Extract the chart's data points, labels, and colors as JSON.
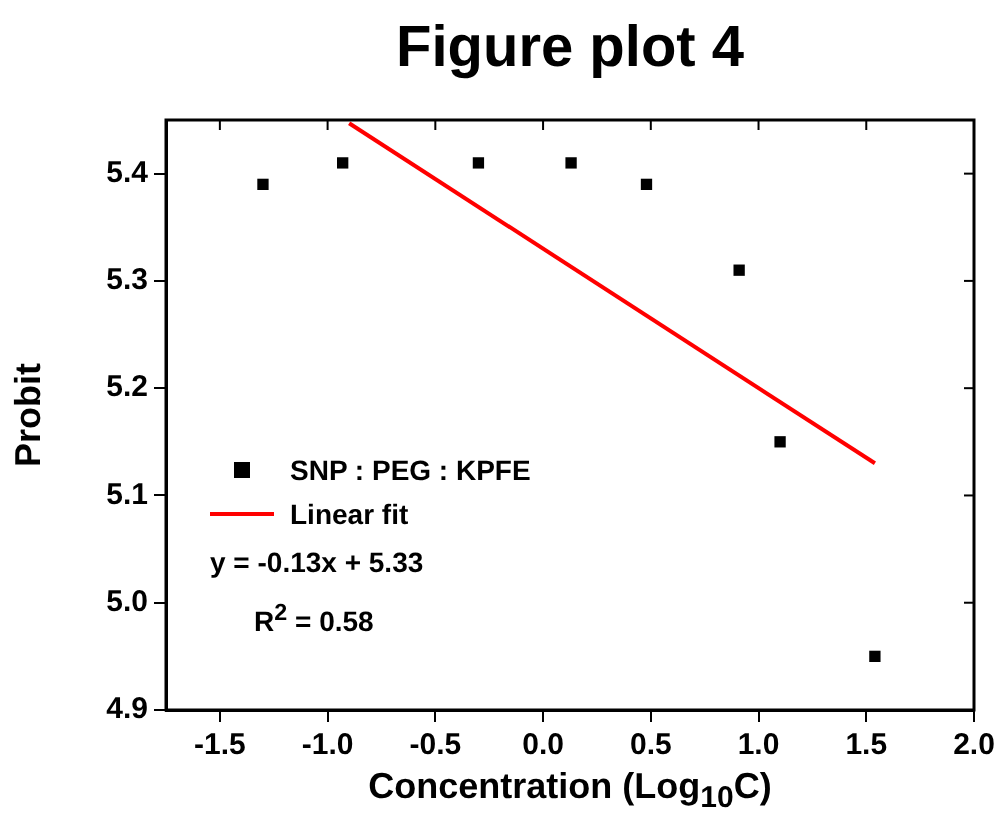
{
  "chart_data": {
    "type": "scatter",
    "title": "Figure plot 4",
    "xlabel": "Concentration (Log$_{10}$C)",
    "ylabel": "Probit",
    "xlim": [
      -1.75,
      2.0
    ],
    "xticks": [
      {
        "value": -1.5,
        "label": "-1.5"
      },
      {
        "value": -1.0,
        "label": "-1.0"
      },
      {
        "value": -0.5,
        "label": "-0.5"
      },
      {
        "value": 0,
        "label": "0.0"
      },
      {
        "value": 0.5,
        "label": "0.5"
      },
      {
        "value": 1.0,
        "label": "1.0"
      },
      {
        "value": 1.5,
        "label": "1.5"
      },
      {
        "value": 2.0,
        "label": "2.0"
      }
    ],
    "ylim": [
      4.9,
      5.45
    ],
    "yticks": [
      {
        "value": 4.9,
        "label": "4.9"
      },
      {
        "value": 5.0,
        "label": "5.0"
      },
      {
        "value": 5.1,
        "label": "5.1"
      },
      {
        "value": 5.2,
        "label": "5.2"
      },
      {
        "value": 5.3,
        "label": "5.3"
      },
      {
        "value": 5.4,
        "label": "5.4"
      }
    ],
    "series": [
      {
        "name": "SNP : PEG : KPFE",
        "color": "#000000",
        "marker": "square",
        "x": [
          -1.3,
          -0.93,
          -0.3,
          0.13,
          0.48,
          0.91,
          1.1,
          1.54
        ],
        "values": [
          5.39,
          5.41,
          5.41,
          5.41,
          5.39,
          5.31,
          5.15,
          4.95
        ]
      },
      {
        "name": "Linear fit",
        "type": "line",
        "color": "#ff0000",
        "marker": "none",
        "line_style": "solid",
        "x": [
          -0.9,
          1.54
        ],
        "values": [
          5.447,
          5.13
        ]
      }
    ],
    "legend": "bottom left",
    "grid": false,
    "annotations": [
      "y = -0.13x + 5.33",
      "R$^{2}$ = 0.58"
    ]
  }
}
